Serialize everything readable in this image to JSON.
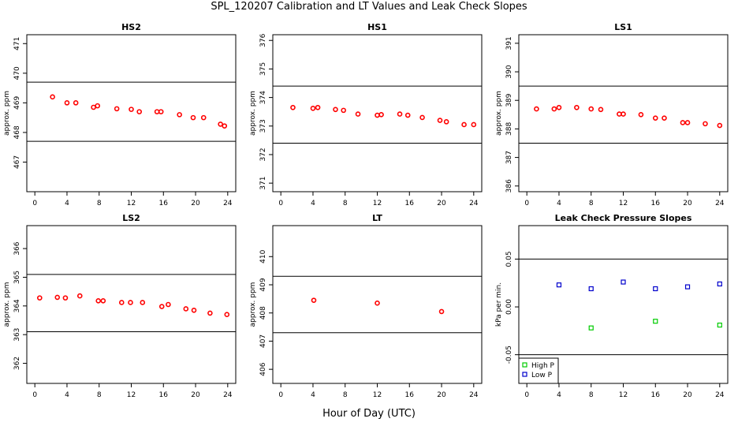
{
  "figure": {
    "title": "SPL_120207  Calibration and LT Values and Leak Check Slopes",
    "xlabel": "Hour of Day (UTC)"
  },
  "chart_data": [
    {
      "type": "scatter",
      "title": "HS2",
      "ylabel": "approx. ppm",
      "xlim": [
        -1,
        25
      ],
      "ylim": [
        466,
        471.3
      ],
      "xticks": [
        0,
        4,
        8,
        12,
        16,
        20,
        24
      ],
      "yticks": [
        467,
        468,
        469,
        470,
        471
      ],
      "hlines": [
        467.7,
        469.7
      ],
      "series": [
        {
          "color": "#ff0000",
          "marker": "circle",
          "x": [
            2.2,
            4.0,
            5.1,
            7.3,
            7.8,
            10.2,
            12.0,
            13.0,
            15.2,
            15.7,
            18.0,
            19.7,
            21.0,
            23.1,
            23.6
          ],
          "y": [
            469.2,
            469.0,
            469.0,
            468.85,
            468.9,
            468.8,
            468.78,
            468.7,
            468.7,
            468.7,
            468.6,
            468.5,
            468.5,
            468.28,
            468.22
          ]
        }
      ]
    },
    {
      "type": "scatter",
      "title": "HS1",
      "ylabel": "approx. ppm",
      "xlim": [
        -1,
        25
      ],
      "ylim": [
        370.7,
        376.2
      ],
      "xticks": [
        0,
        4,
        8,
        12,
        16,
        20,
        24
      ],
      "yticks": [
        371,
        372,
        373,
        374,
        375,
        376
      ],
      "hlines": [
        372.4,
        374.4
      ],
      "series": [
        {
          "color": "#ff0000",
          "marker": "circle",
          "x": [
            1.5,
            4.0,
            4.6,
            6.8,
            7.8,
            9.6,
            12.0,
            12.5,
            14.8,
            15.8,
            17.6,
            19.8,
            20.6,
            22.8,
            24.0
          ],
          "y": [
            373.65,
            373.62,
            373.65,
            373.58,
            373.55,
            373.42,
            373.38,
            373.4,
            373.42,
            373.38,
            373.3,
            373.2,
            373.15,
            373.05,
            373.05
          ]
        }
      ]
    },
    {
      "type": "scatter",
      "title": "LS1",
      "ylabel": "approx. ppm",
      "xlim": [
        -1,
        25
      ],
      "ylim": [
        385.8,
        391.3
      ],
      "xticks": [
        0,
        4,
        8,
        12,
        16,
        20,
        24
      ],
      "yticks": [
        386,
        387,
        388,
        389,
        390,
        391
      ],
      "hlines": [
        387.5,
        389.5
      ],
      "series": [
        {
          "color": "#ff0000",
          "marker": "circle",
          "x": [
            1.2,
            3.4,
            4.0,
            6.2,
            8.0,
            9.2,
            11.5,
            12.0,
            14.2,
            16.0,
            17.1,
            19.4,
            20.0,
            22.2,
            24.0
          ],
          "y": [
            388.7,
            388.7,
            388.75,
            388.75,
            388.7,
            388.68,
            388.52,
            388.52,
            388.5,
            388.38,
            388.38,
            388.22,
            388.22,
            388.18,
            388.12
          ]
        }
      ]
    },
    {
      "type": "scatter",
      "title": "LS2",
      "ylabel": "approx. ppm",
      "xlim": [
        -1,
        25
      ],
      "ylim": [
        361.3,
        366.8
      ],
      "xticks": [
        0,
        4,
        8,
        12,
        16,
        20,
        24
      ],
      "yticks": [
        362,
        363,
        364,
        365,
        366
      ],
      "hlines": [
        363.1,
        365.1
      ],
      "series": [
        {
          "color": "#ff0000",
          "marker": "circle",
          "x": [
            0.6,
            2.8,
            3.8,
            5.6,
            7.9,
            8.5,
            10.8,
            11.9,
            13.4,
            15.8,
            16.6,
            18.8,
            19.8,
            21.8,
            23.9
          ],
          "y": [
            364.28,
            364.3,
            364.28,
            364.35,
            364.18,
            364.18,
            364.12,
            364.12,
            364.12,
            363.98,
            364.05,
            363.9,
            363.85,
            363.75,
            363.7
          ]
        }
      ]
    },
    {
      "type": "scatter",
      "title": "LT",
      "ylabel": "approx. ppm",
      "xlim": [
        -1,
        25
      ],
      "ylim": [
        405.5,
        411.1
      ],
      "xticks": [
        0,
        4,
        8,
        12,
        16,
        20,
        24
      ],
      "yticks": [
        406,
        407,
        408,
        409,
        410
      ],
      "hlines": [
        407.3,
        409.3
      ],
      "series": [
        {
          "color": "#ff0000",
          "marker": "circle",
          "x": [
            4.1,
            12.0,
            20.0
          ],
          "y": [
            408.45,
            408.35,
            408.05
          ]
        }
      ]
    },
    {
      "type": "scatter",
      "title": "Leak Check Pressure Slopes",
      "ylabel": "kPa per min.",
      "xlim": [
        -1,
        25
      ],
      "ylim": [
        -0.08,
        0.085
      ],
      "xticks": [
        0,
        4,
        8,
        12,
        16,
        20,
        24
      ],
      "yticks": [
        -0.05,
        0.0,
        0.05
      ],
      "ytick_labels": [
        "-0.05",
        "0.00",
        "0.05"
      ],
      "hlines": [
        -0.05,
        0.05
      ],
      "legend": "bottom-left",
      "series": [
        {
          "name": "High P",
          "color": "#00cc00",
          "marker": "square",
          "x": [
            8.0,
            16.0,
            24.0
          ],
          "y": [
            -0.022,
            -0.015,
            -0.019
          ]
        },
        {
          "name": "Low P",
          "color": "#0000cc",
          "marker": "square",
          "x": [
            4.0,
            8.0,
            12.0,
            16.0,
            20.0,
            24.0
          ],
          "y": [
            0.023,
            0.019,
            0.026,
            0.019,
            0.021,
            0.024
          ]
        }
      ]
    }
  ]
}
